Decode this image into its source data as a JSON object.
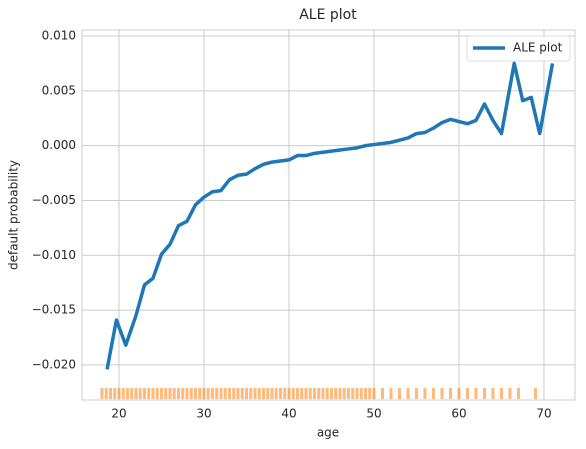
{
  "chart_data": {
    "type": "line",
    "title": "ALE plot",
    "x_label": "age",
    "y_label": "default probability",
    "x": [
      18.6,
      19.7,
      20.8,
      22,
      23,
      24,
      25,
      26,
      27,
      28,
      29,
      30,
      31,
      32,
      33,
      34,
      35,
      36,
      37,
      38,
      39,
      40,
      41,
      42,
      43,
      44,
      45,
      46,
      47,
      48,
      49,
      50,
      51,
      52,
      53,
      54,
      55,
      56,
      57,
      58,
      59,
      60,
      61,
      62,
      63,
      64,
      65,
      66.5,
      67.5,
      68.5,
      69.5,
      71
    ],
    "series": [
      {
        "name": "ALE plot",
        "color": "#1f77b4",
        "values": [
          -0.0204,
          -0.0159,
          -0.0182,
          -0.0155,
          -0.0127,
          -0.0121,
          -0.0099,
          -0.009,
          -0.0073,
          -0.0069,
          -0.0054,
          -0.0047,
          -0.0042,
          -0.0041,
          -0.0031,
          -0.0027,
          -0.0026,
          -0.0021,
          -0.0017,
          -0.0015,
          -0.0014,
          -0.0013,
          -0.0009,
          -0.0009,
          -0.0007,
          -0.0006,
          -0.0005,
          -0.0004,
          -0.0003,
          -0.0002,
          0.0,
          0.0001,
          0.0002,
          0.0003,
          0.0005,
          0.0007,
          0.0011,
          0.0012,
          0.0016,
          0.0021,
          0.0024,
          0.0022,
          0.002,
          0.0023,
          0.0038,
          0.0023,
          0.0011,
          0.0075,
          0.0041,
          0.0044,
          0.0011,
          0.0075
        ]
      }
    ],
    "rug": {
      "color": "#ff7f0e",
      "x": [
        18,
        18.5,
        19,
        19.5,
        20,
        20.5,
        21,
        21.5,
        22,
        22.5,
        23,
        23.5,
        24,
        24.5,
        25,
        25.5,
        26,
        26.5,
        27,
        27.5,
        28,
        28.5,
        29,
        29.5,
        30,
        30.5,
        31,
        31.5,
        32,
        32.5,
        33,
        33.5,
        34,
        34.5,
        35,
        35.5,
        36,
        36.5,
        37,
        37.5,
        38,
        38.5,
        39,
        39.5,
        40,
        40.5,
        41,
        41.5,
        42,
        42.5,
        43,
        43.5,
        44,
        44.5,
        45,
        45.5,
        46,
        46.5,
        47,
        47.5,
        48,
        48.5,
        49,
        49.5,
        50,
        51,
        52,
        53,
        54,
        55,
        56,
        57,
        58,
        59,
        60,
        61,
        62,
        63,
        64,
        65,
        66,
        67,
        69
      ]
    },
    "xlim": [
      15.65,
      73.65
    ],
    "ylim": [
      -0.0232,
      0.01055
    ],
    "xticks": [
      20,
      30,
      40,
      50,
      60,
      70
    ],
    "yticks": [
      {
        "value": -0.02,
        "label": "−0.020"
      },
      {
        "value": -0.015,
        "label": "−0.015"
      },
      {
        "value": -0.01,
        "label": "−0.010"
      },
      {
        "value": -0.005,
        "label": "−0.005"
      },
      {
        "value": 0,
        "label": "0.000"
      },
      {
        "value": 0.005,
        "label": "0.005"
      },
      {
        "value": 0.01,
        "label": "0.010"
      }
    ],
    "grid": true,
    "legend": "upper right"
  }
}
